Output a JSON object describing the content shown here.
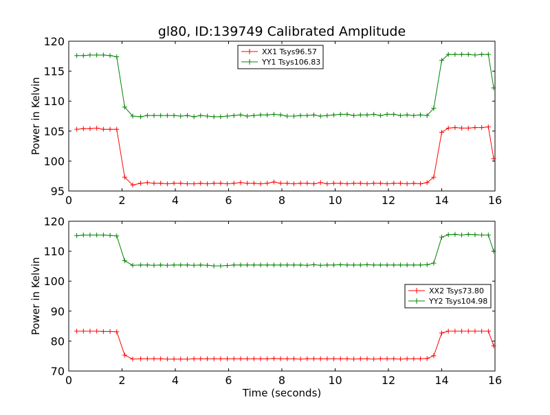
{
  "figure": {
    "title": "gl80, ID:139749 Calibrated Amplitude",
    "xlabel": "Time (seconds)"
  },
  "chart_data": [
    {
      "type": "line",
      "title": "gl80, ID:139749 Calibrated Amplitude",
      "xlabel": "",
      "ylabel": "Power in Kelvin",
      "xlim": [
        0,
        16
      ],
      "ylim": [
        95,
        120
      ],
      "xticks": [
        0,
        2,
        4,
        6,
        8,
        10,
        12,
        14,
        16
      ],
      "xtick_labels": [
        "0",
        "2",
        "4",
        "6",
        "8",
        "10",
        "12",
        "14",
        "16"
      ],
      "yticks": [
        95,
        100,
        105,
        110,
        115,
        120
      ],
      "ytick_labels": [
        "95",
        "100",
        "105",
        "110",
        "115",
        "120"
      ],
      "legend_position": "upper-center",
      "x": [
        0.3,
        0.55,
        0.8,
        1.05,
        1.3,
        1.55,
        1.8,
        2.1,
        2.4,
        2.7,
        2.95,
        3.2,
        3.45,
        3.7,
        3.95,
        4.2,
        4.45,
        4.7,
        4.95,
        5.2,
        5.45,
        5.7,
        5.95,
        6.2,
        6.45,
        6.7,
        6.95,
        7.2,
        7.45,
        7.7,
        7.95,
        8.2,
        8.45,
        8.7,
        8.95,
        9.2,
        9.45,
        9.7,
        9.95,
        10.2,
        10.45,
        10.7,
        10.95,
        11.2,
        11.45,
        11.7,
        11.95,
        12.2,
        12.45,
        12.7,
        12.95,
        13.2,
        13.45,
        13.7,
        14.0,
        14.25,
        14.5,
        14.75,
        15.0,
        15.25,
        15.5,
        15.75,
        15.95
      ],
      "series": [
        {
          "name": "XX1 Tsys96.57",
          "color": "#ff0000",
          "values": [
            105.3,
            105.4,
            105.4,
            105.5,
            105.3,
            105.3,
            105.3,
            97.3,
            96.0,
            96.3,
            96.4,
            96.3,
            96.3,
            96.2,
            96.3,
            96.3,
            96.2,
            96.2,
            96.3,
            96.2,
            96.3,
            96.3,
            96.2,
            96.3,
            96.4,
            96.3,
            96.3,
            96.2,
            96.3,
            96.5,
            96.3,
            96.3,
            96.2,
            96.3,
            96.3,
            96.2,
            96.4,
            96.2,
            96.3,
            96.3,
            96.2,
            96.3,
            96.3,
            96.2,
            96.3,
            96.3,
            96.2,
            96.3,
            96.3,
            96.2,
            96.3,
            96.2,
            96.4,
            97.3,
            104.8,
            105.5,
            105.6,
            105.5,
            105.5,
            105.6,
            105.6,
            105.7,
            100.4
          ]
        },
        {
          "name": "YY1 Tsys106.83",
          "color": "#008000",
          "values": [
            117.6,
            117.6,
            117.7,
            117.7,
            117.7,
            117.6,
            117.4,
            109.0,
            107.5,
            107.4,
            107.6,
            107.6,
            107.6,
            107.6,
            107.6,
            107.5,
            107.6,
            107.4,
            107.6,
            107.5,
            107.4,
            107.4,
            107.5,
            107.6,
            107.7,
            107.5,
            107.6,
            107.7,
            107.7,
            107.8,
            107.7,
            107.5,
            107.5,
            107.6,
            107.6,
            107.7,
            107.5,
            107.6,
            107.7,
            107.8,
            107.8,
            107.6,
            107.7,
            107.7,
            107.8,
            107.6,
            107.8,
            107.8,
            107.6,
            107.7,
            107.6,
            107.7,
            107.6,
            108.8,
            116.8,
            117.8,
            117.8,
            117.8,
            117.8,
            117.7,
            117.8,
            117.8,
            112.2
          ]
        }
      ]
    },
    {
      "type": "line",
      "title": "",
      "xlabel": "Time (seconds)",
      "ylabel": "Power in Kelvin",
      "xlim": [
        0,
        16
      ],
      "ylim": [
        70,
        120
      ],
      "xticks": [
        0,
        2,
        4,
        6,
        8,
        10,
        12,
        14,
        16
      ],
      "xtick_labels": [
        "0",
        "2",
        "4",
        "6",
        "8",
        "10",
        "12",
        "14",
        "16"
      ],
      "yticks": [
        70,
        80,
        90,
        100,
        110,
        120
      ],
      "ytick_labels": [
        "70",
        "80",
        "90",
        "100",
        "110",
        "120"
      ],
      "legend_position": "center-right",
      "x": [
        0.3,
        0.55,
        0.8,
        1.05,
        1.3,
        1.55,
        1.8,
        2.1,
        2.4,
        2.7,
        2.95,
        3.2,
        3.45,
        3.7,
        3.95,
        4.2,
        4.45,
        4.7,
        4.95,
        5.2,
        5.45,
        5.7,
        5.95,
        6.2,
        6.45,
        6.7,
        6.95,
        7.2,
        7.45,
        7.7,
        7.95,
        8.2,
        8.45,
        8.7,
        8.95,
        9.2,
        9.45,
        9.7,
        9.95,
        10.2,
        10.45,
        10.7,
        10.95,
        11.2,
        11.45,
        11.7,
        11.95,
        12.2,
        12.45,
        12.7,
        12.95,
        13.2,
        13.45,
        13.7,
        14.0,
        14.25,
        14.5,
        14.75,
        15.0,
        15.25,
        15.5,
        15.75,
        15.95
      ],
      "series": [
        {
          "name": "XX2 Tsys73.80",
          "color": "#ff0000",
          "values": [
            83.3,
            83.3,
            83.3,
            83.3,
            83.2,
            83.2,
            83.1,
            75.3,
            74.0,
            74.1,
            74.1,
            74.1,
            74.1,
            74.0,
            74.0,
            74.0,
            74.0,
            74.1,
            74.1,
            74.1,
            74.1,
            74.1,
            74.1,
            74.1,
            74.1,
            74.1,
            74.1,
            74.1,
            74.1,
            74.2,
            74.1,
            74.1,
            74.1,
            74.0,
            74.1,
            74.1,
            74.1,
            74.1,
            74.1,
            74.1,
            74.1,
            74.0,
            74.1,
            74.1,
            74.0,
            74.1,
            74.1,
            74.1,
            74.0,
            74.1,
            74.1,
            74.1,
            74.2,
            75.1,
            82.7,
            83.3,
            83.3,
            83.3,
            83.3,
            83.3,
            83.3,
            83.3,
            78.4
          ]
        },
        {
          "name": "YY2 Tsys104.98",
          "color": "#008000",
          "values": [
            115.2,
            115.4,
            115.4,
            115.4,
            115.4,
            115.3,
            115.1,
            106.8,
            105.3,
            105.4,
            105.4,
            105.3,
            105.4,
            105.3,
            105.4,
            105.4,
            105.4,
            105.3,
            105.4,
            105.3,
            105.1,
            105.1,
            105.2,
            105.4,
            105.4,
            105.4,
            105.4,
            105.4,
            105.4,
            105.4,
            105.4,
            105.4,
            105.4,
            105.4,
            105.3,
            105.5,
            105.3,
            105.4,
            105.4,
            105.5,
            105.4,
            105.4,
            105.4,
            105.5,
            105.4,
            105.4,
            105.4,
            105.4,
            105.4,
            105.4,
            105.4,
            105.4,
            105.5,
            106.0,
            114.7,
            115.5,
            115.6,
            115.4,
            115.6,
            115.5,
            115.4,
            115.4,
            110.0
          ]
        }
      ]
    }
  ]
}
